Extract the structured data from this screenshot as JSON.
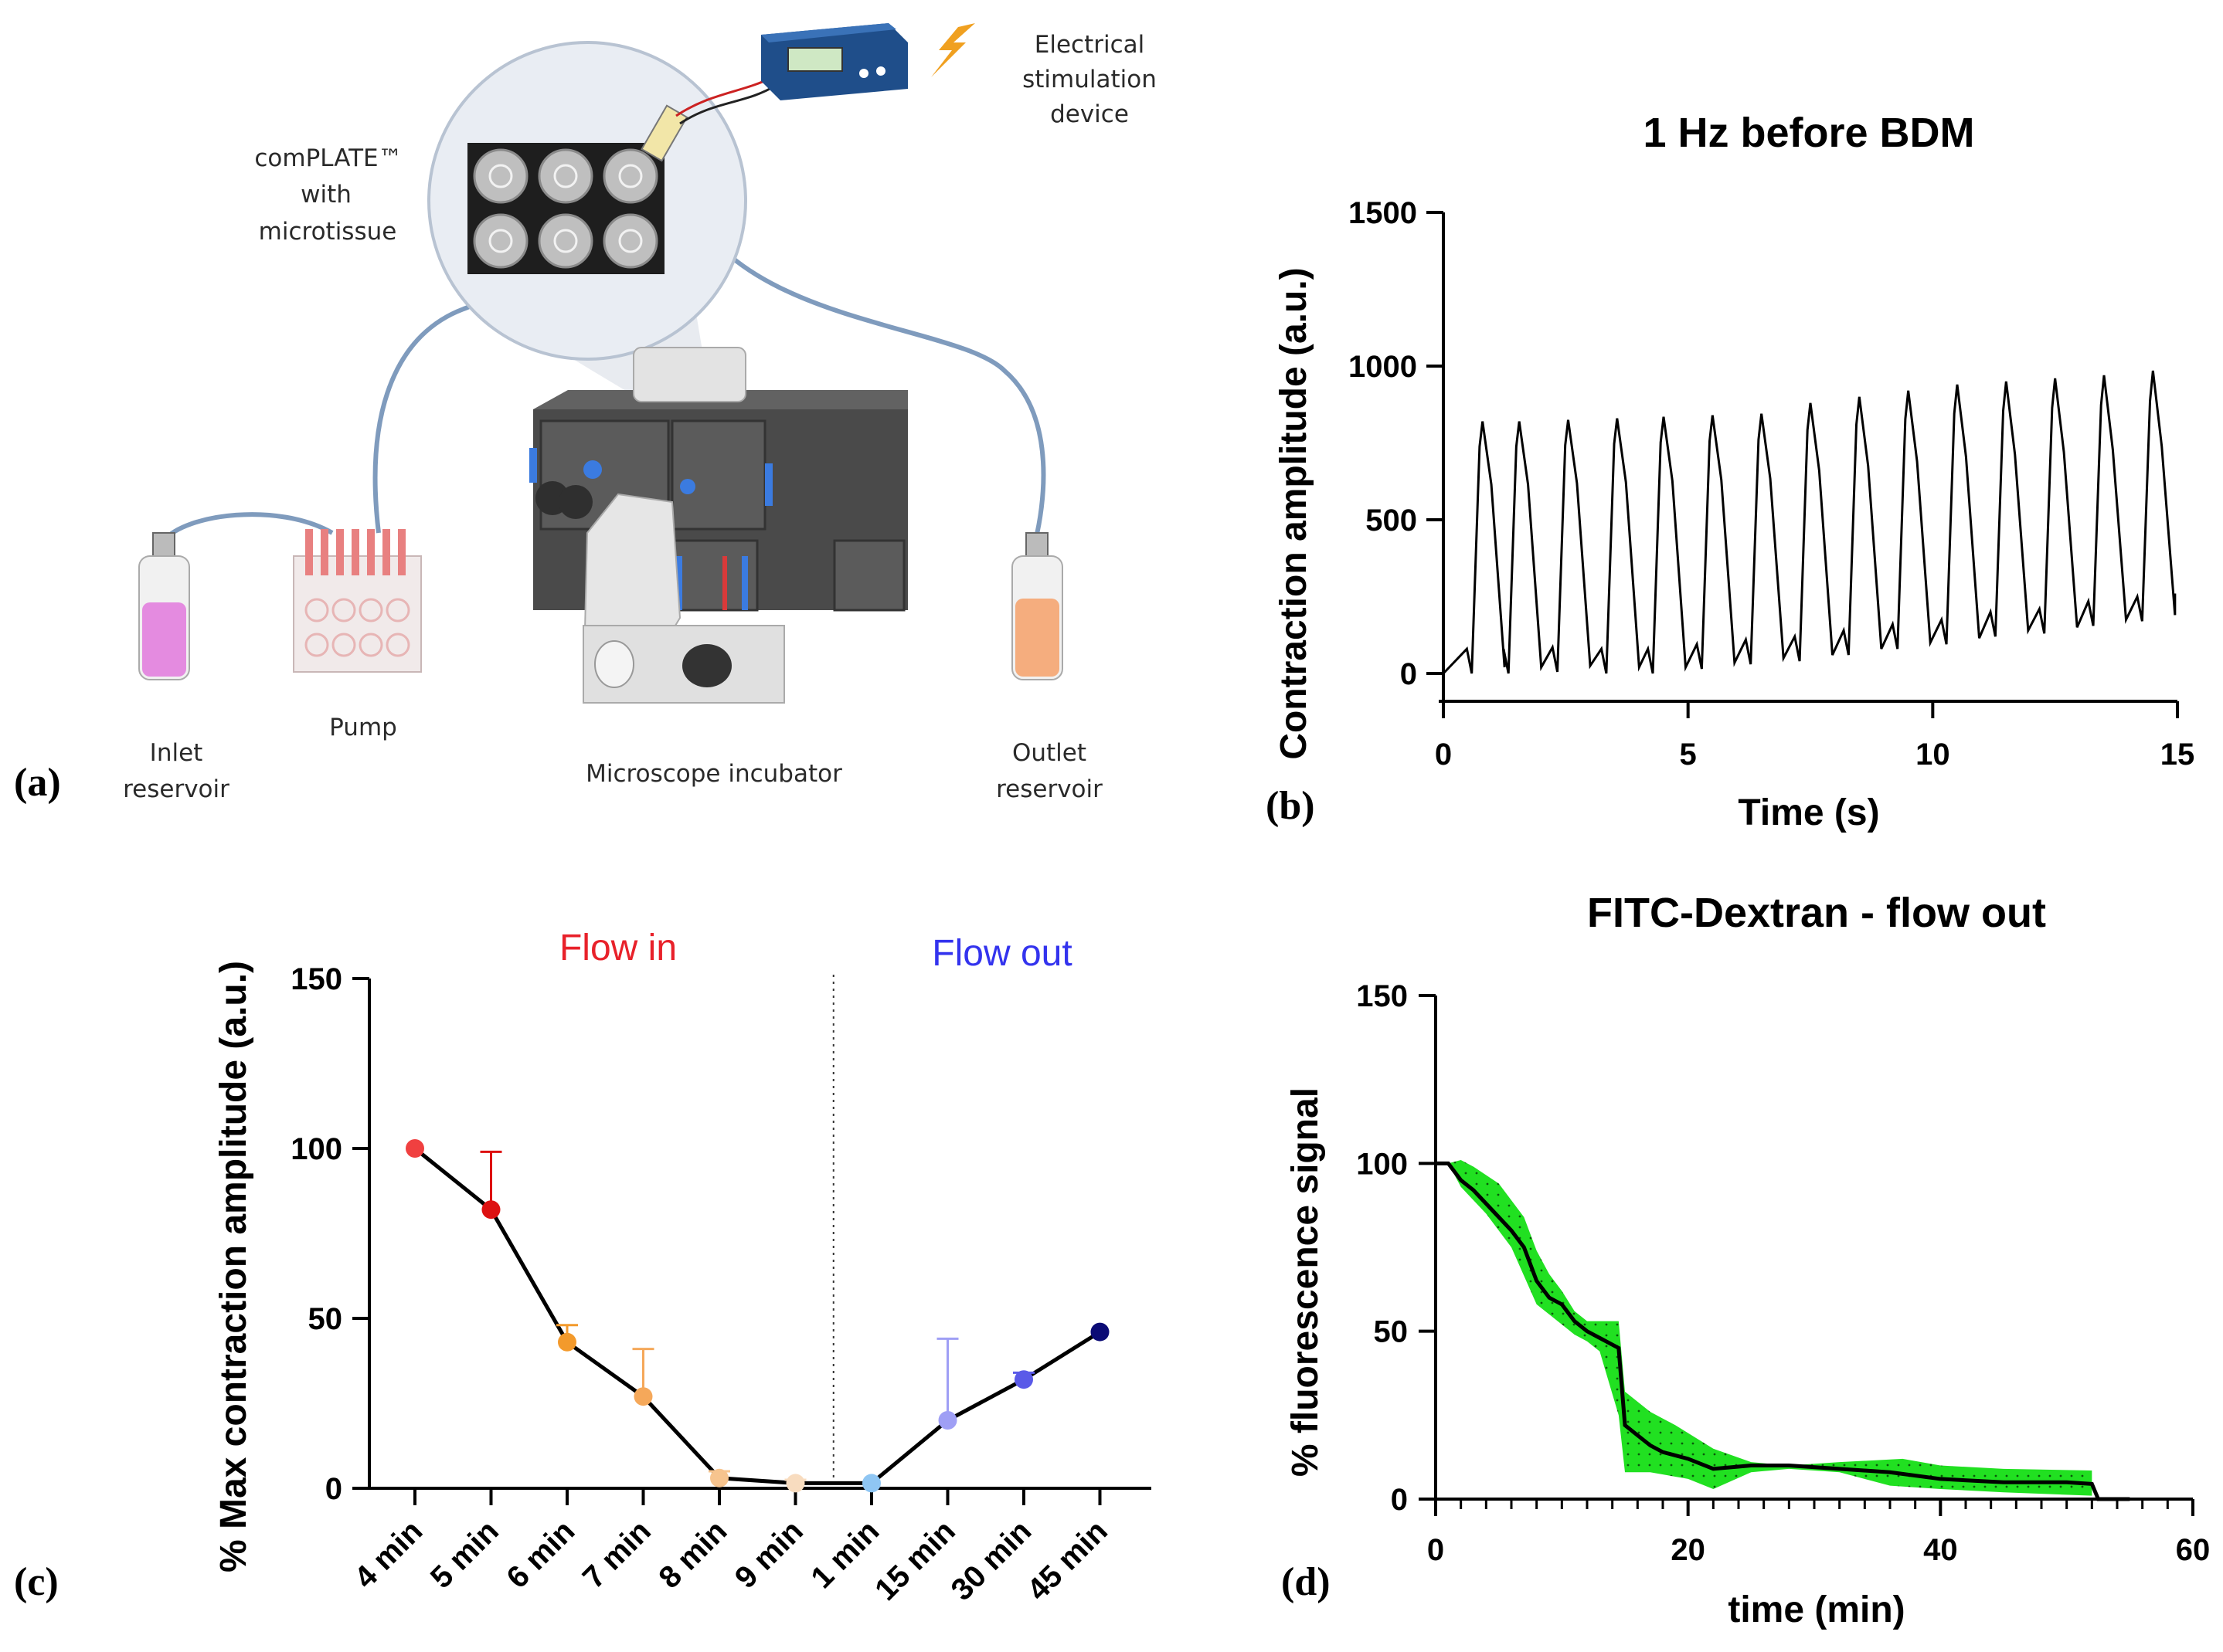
{
  "panels": {
    "a": {
      "letter": "(a)",
      "labels": {
        "electrical_line1": "Electrical",
        "electrical_line2": "stimulation",
        "electrical_line3": "device",
        "complate_line1": "comPLATE™",
        "complate_line2": "with",
        "complate_line3": "microtissue",
        "pump": "Pump",
        "inlet_line1": "Inlet",
        "inlet_line2": "reservoir",
        "microscope": "Microscope incubator",
        "outlet_line1": "Outlet",
        "outlet_line2": "reservoir"
      }
    },
    "b": {
      "letter": "(b)"
    },
    "c": {
      "letter": "(c)"
    },
    "d": {
      "letter": "(d)"
    }
  },
  "colors": {
    "flow_in": "#e8212a",
    "flow_out": "#3333ee",
    "shade": "#21e021",
    "tubing": "#7f9bbd",
    "line": "#000000"
  },
  "chart_data": [
    {
      "id": "b",
      "type": "line",
      "title": "1 Hz before BDM",
      "xlabel": "Time (s)",
      "ylabel": "Contraction amplitude (a.u.)",
      "xlim": [
        0,
        15
      ],
      "ylim": [
        0,
        1500
      ],
      "xticks": [
        0,
        5,
        10,
        15
      ],
      "yticks": [
        0,
        500,
        1000,
        1500
      ],
      "beat_times": [
        0.8,
        1.55,
        2.55,
        3.55,
        4.5,
        5.5,
        6.5,
        7.5,
        8.5,
        9.5,
        10.5,
        11.5,
        12.5,
        13.5,
        14.5
      ],
      "peaks": [
        820,
        820,
        825,
        830,
        835,
        840,
        845,
        880,
        900,
        920,
        940,
        950,
        960,
        970,
        985
      ],
      "baselines": [
        80,
        80,
        85,
        80,
        80,
        95,
        110,
        120,
        140,
        160,
        175,
        200,
        210,
        235,
        250
      ]
    },
    {
      "id": "c",
      "type": "line",
      "title": "",
      "xlabel": "",
      "ylabel": "% Max contraction amplitude (a.u.)",
      "ylim": [
        0,
        150
      ],
      "yticks": [
        0,
        50,
        100,
        150
      ],
      "categories": [
        "4 min",
        "5 min",
        "6 min",
        "7 min",
        "8 min",
        "9 min",
        "1 min",
        "15 min",
        "30 min",
        "45 min"
      ],
      "values": [
        100,
        82,
        43,
        27,
        3,
        1.5,
        1.5,
        20,
        32,
        46
      ],
      "errors": [
        0,
        17,
        5,
        14,
        2,
        1,
        0,
        24,
        2,
        0
      ],
      "point_colors": [
        "#f04040",
        "#dd1111",
        "#f39a2c",
        "#f5a85a",
        "#f7c48e",
        "#f8dcbf",
        "#8fc6f3",
        "#9f9ff5",
        "#5a5ae8",
        "#0b0b75"
      ],
      "annotations": [
        "Flow in",
        "Flow out"
      ],
      "divider_after_index": 5
    },
    {
      "id": "d",
      "type": "area",
      "title": "FITC-Dextran - flow out",
      "xlabel": "time (min)",
      "ylabel": "% fluorescence signal",
      "xlim": [
        0,
        60
      ],
      "ylim": [
        0,
        150
      ],
      "xticks": [
        0,
        20,
        40,
        60
      ],
      "yticks": [
        0,
        50,
        100,
        150
      ],
      "mean": [
        [
          0,
          100
        ],
        [
          1,
          100
        ],
        [
          2,
          95
        ],
        [
          3,
          92
        ],
        [
          4,
          88
        ],
        [
          5,
          84
        ],
        [
          6,
          80
        ],
        [
          7,
          75
        ],
        [
          8,
          65
        ],
        [
          9,
          60
        ],
        [
          10,
          58
        ],
        [
          11,
          53
        ],
        [
          12,
          50
        ],
        [
          13,
          48
        ],
        [
          14.5,
          45
        ],
        [
          15,
          22
        ],
        [
          16,
          19
        ],
        [
          17,
          16
        ],
        [
          18,
          14
        ],
        [
          20,
          12
        ],
        [
          22,
          9
        ],
        [
          25,
          10
        ],
        [
          28,
          10
        ],
        [
          32,
          9
        ],
        [
          36,
          8
        ],
        [
          40,
          6
        ],
        [
          45,
          5
        ],
        [
          50,
          5
        ],
        [
          52,
          4.5
        ],
        [
          52.5,
          0
        ],
        [
          55,
          0
        ]
      ],
      "upper": [
        [
          1,
          100
        ],
        [
          2,
          101
        ],
        [
          3,
          99
        ],
        [
          5,
          94
        ],
        [
          7,
          84
        ],
        [
          8,
          74
        ],
        [
          9,
          67
        ],
        [
          10,
          62
        ],
        [
          11,
          56
        ],
        [
          12,
          53
        ],
        [
          14.5,
          53
        ],
        [
          15,
          32
        ],
        [
          17,
          26
        ],
        [
          19,
          22
        ],
        [
          22,
          15
        ],
        [
          25,
          11
        ],
        [
          28,
          10
        ],
        [
          32,
          11
        ],
        [
          37,
          12
        ],
        [
          40,
          10
        ],
        [
          45,
          9
        ],
        [
          52,
          8.5
        ]
      ],
      "lower": [
        [
          1,
          100
        ],
        [
          2,
          93
        ],
        [
          4,
          85
        ],
        [
          6,
          75
        ],
        [
          8,
          58
        ],
        [
          9,
          55
        ],
        [
          11,
          49
        ],
        [
          12,
          47
        ],
        [
          13,
          44
        ],
        [
          14.5,
          25
        ],
        [
          15,
          8
        ],
        [
          17,
          8
        ],
        [
          20,
          6
        ],
        [
          22,
          3
        ],
        [
          25,
          8
        ],
        [
          28,
          9
        ],
        [
          32,
          8
        ],
        [
          36,
          4
        ],
        [
          40,
          3
        ],
        [
          45,
          2
        ],
        [
          52,
          1
        ]
      ]
    }
  ]
}
